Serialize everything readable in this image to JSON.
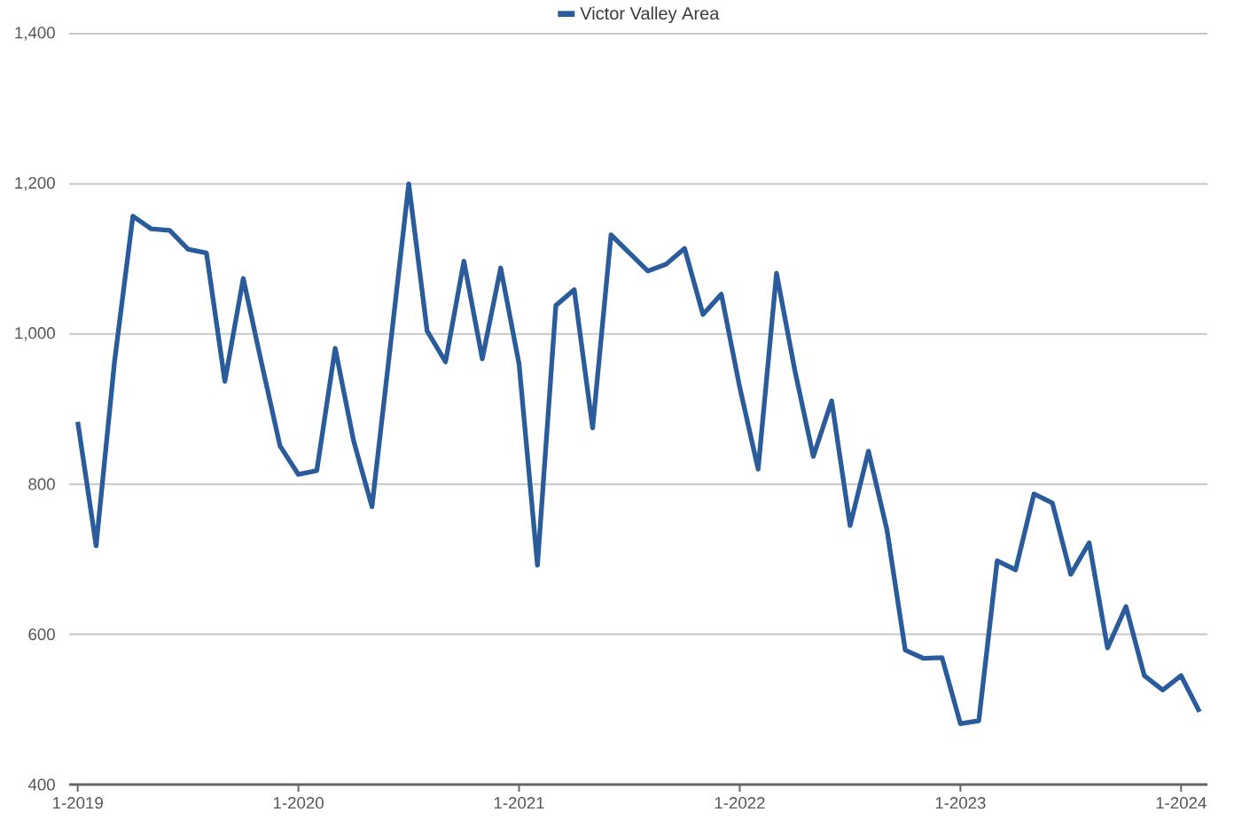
{
  "chart_data": {
    "type": "line",
    "x": [
      "2019-01",
      "2019-02",
      "2019-03",
      "2019-04",
      "2019-05",
      "2019-06",
      "2019-07",
      "2019-08",
      "2019-09",
      "2019-10",
      "2019-11",
      "2019-12",
      "2020-01",
      "2020-02",
      "2020-03",
      "2020-04",
      "2020-05",
      "2020-06",
      "2020-07",
      "2020-08",
      "2020-09",
      "2020-10",
      "2020-11",
      "2020-12",
      "2021-01",
      "2021-02",
      "2021-03",
      "2021-04",
      "2021-05",
      "2021-06",
      "2021-07",
      "2021-08",
      "2021-09",
      "2021-10",
      "2021-11",
      "2021-12",
      "2022-01",
      "2022-02",
      "2022-03",
      "2022-04",
      "2022-05",
      "2022-06",
      "2022-07",
      "2022-08",
      "2022-09",
      "2022-10",
      "2022-11",
      "2022-12",
      "2023-01",
      "2023-02",
      "2023-03",
      "2023-04",
      "2023-05",
      "2023-06",
      "2023-07",
      "2023-08",
      "2023-09",
      "2023-10",
      "2023-11",
      "2023-12",
      "2024-01",
      "2024-02"
    ],
    "series": [
      {
        "name": "Victor Valley Area",
        "color": "#2a5b9b",
        "values": [
          883,
          718,
          963,
          1157,
          1140,
          1138,
          1113,
          1108,
          937,
          1074,
          961,
          851,
          813,
          818,
          981,
          858,
          770,
          984,
          1200,
          1004,
          963,
          1097,
          967,
          1088,
          960,
          692,
          1038,
          1059,
          875,
          1132,
          1108,
          1084,
          1093,
          1114,
          1026,
          1053,
          929,
          820,
          1081,
          951,
          837,
          911,
          745,
          844,
          740,
          579,
          568,
          569,
          481,
          485,
          698,
          686,
          787,
          775,
          680,
          722,
          582,
          637,
          545,
          526,
          545,
          497
        ]
      }
    ],
    "xlim": [
      "2018-12-17",
      "2024-02-14"
    ],
    "xticks": [
      {
        "value": "2019-01",
        "label": "1-2019"
      },
      {
        "value": "2020-01",
        "label": "1-2020"
      },
      {
        "value": "2021-01",
        "label": "1-2021"
      },
      {
        "value": "2022-01",
        "label": "1-2022"
      },
      {
        "value": "2023-01",
        "label": "1-2023"
      },
      {
        "value": "2024-01",
        "label": "1-2024"
      }
    ],
    "ylim": [
      400,
      1400
    ],
    "yticks": [
      400,
      600,
      800,
      {
        "value": 1000,
        "label": "1,000"
      },
      {
        "value": 1200,
        "label": "1,200"
      },
      {
        "value": 1400,
        "label": "1,400"
      }
    ],
    "grid": "y",
    "legend": "top",
    "marker": "none",
    "line_style": "solid"
  }
}
